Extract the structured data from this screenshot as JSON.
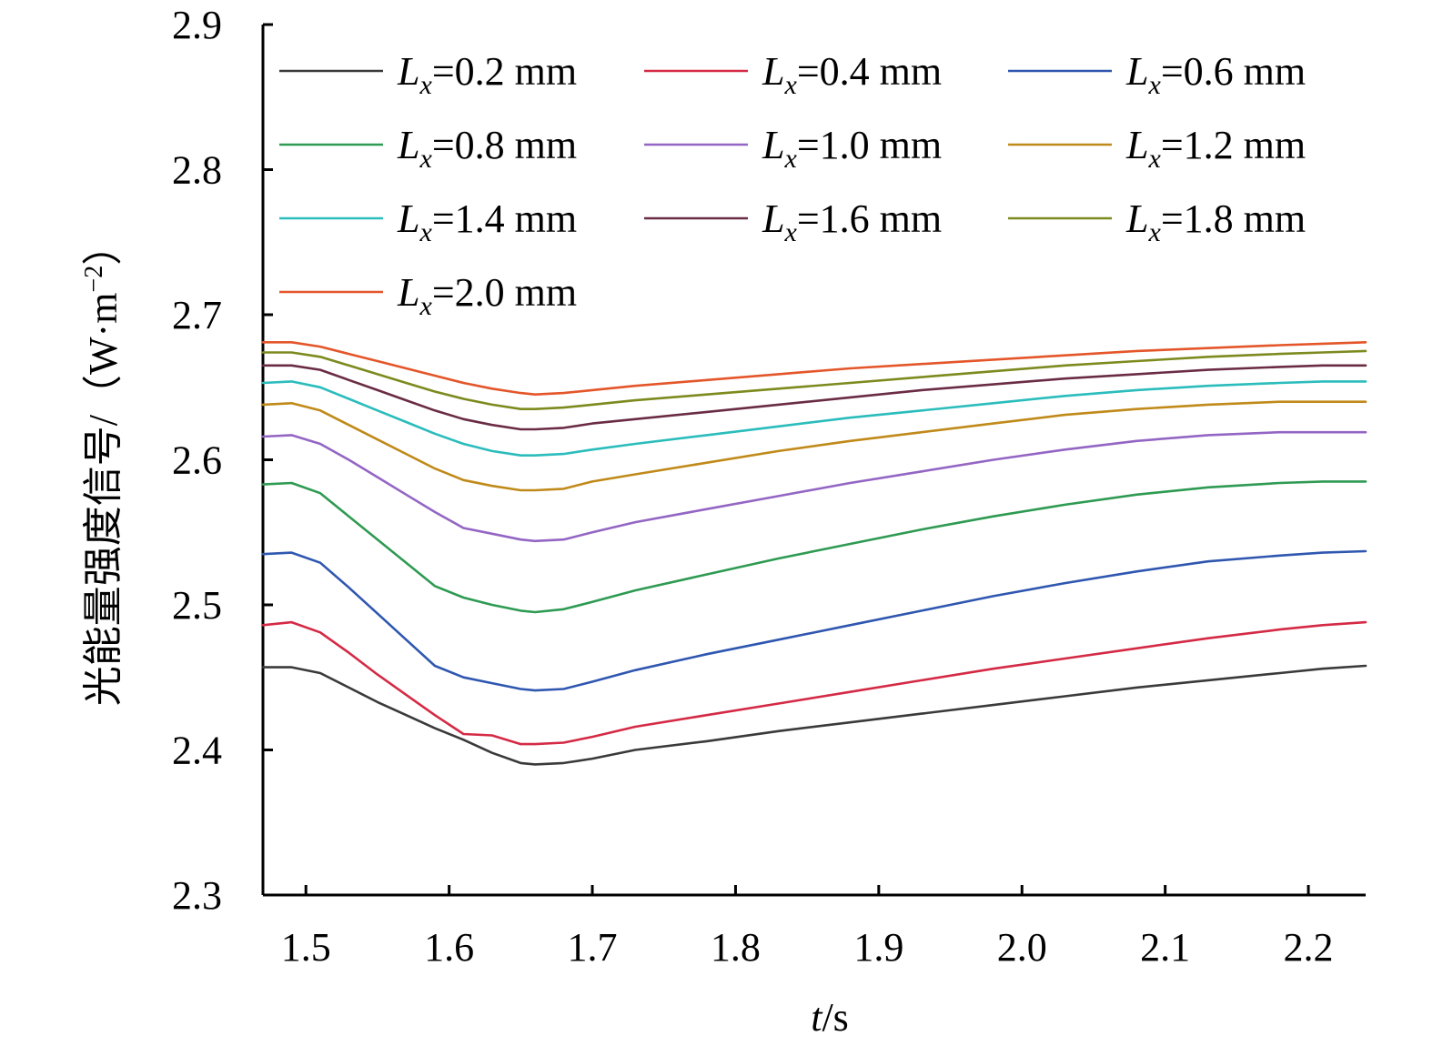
{
  "chart_data": {
    "type": "line",
    "title": "",
    "xlabel": {
      "var": "t",
      "unit": "/s"
    },
    "ylabel": {
      "main": "光能量强度信号/",
      "unit_open": "（W·m",
      "unit_sup": "−2",
      "unit_close": "）"
    },
    "xlim": [
      1.47,
      2.24
    ],
    "ylim": [
      2.3,
      2.9
    ],
    "x_ticks": [
      1.5,
      1.6,
      1.7,
      1.8,
      1.9,
      2.0,
      2.1,
      2.2
    ],
    "x_tick_labels": [
      "1.5",
      "1.6",
      "1.7",
      "1.8",
      "1.9",
      "2.0",
      "2.1",
      "2.2"
    ],
    "y_ticks": [
      2.3,
      2.4,
      2.5,
      2.6,
      2.7,
      2.8,
      2.9
    ],
    "y_tick_labels": [
      "2.3",
      "2.4",
      "2.5",
      "2.6",
      "2.7",
      "2.8",
      "2.9"
    ],
    "grid": false,
    "legend_position": "top-left",
    "x": [
      1.47,
      1.49,
      1.51,
      1.53,
      1.55,
      1.57,
      1.59,
      1.61,
      1.63,
      1.65,
      1.66,
      1.68,
      1.7,
      1.73,
      1.78,
      1.83,
      1.88,
      1.93,
      1.98,
      2.03,
      2.08,
      2.13,
      2.18,
      2.21,
      2.24
    ],
    "series": [
      {
        "name": "Lx=0.2 mm",
        "label_var": "L",
        "label_sub": "x",
        "label_rest": "=0.2 mm",
        "color": "#3a3a3a",
        "values": [
          2.457,
          2.457,
          2.453,
          2.443,
          2.433,
          2.424,
          2.415,
          2.407,
          2.398,
          2.391,
          2.39,
          2.391,
          2.394,
          2.4,
          2.406,
          2.413,
          2.419,
          2.425,
          2.431,
          2.437,
          2.443,
          2.448,
          2.453,
          2.456,
          2.458
        ]
      },
      {
        "name": "Lx=0.4 mm",
        "label_var": "L",
        "label_sub": "x",
        "label_rest": "=0.4 mm",
        "color": "#d42a45",
        "values": [
          2.486,
          2.488,
          2.481,
          2.467,
          2.452,
          2.438,
          2.424,
          2.411,
          2.41,
          2.404,
          2.404,
          2.405,
          2.409,
          2.416,
          2.424,
          2.432,
          2.44,
          2.448,
          2.456,
          2.463,
          2.47,
          2.477,
          2.483,
          2.486,
          2.488
        ]
      },
      {
        "name": "Lx=0.6 mm",
        "label_var": "L",
        "label_sub": "x",
        "label_rest": "=0.6 mm",
        "color": "#2f57b0",
        "values": [
          2.535,
          2.536,
          2.529,
          2.512,
          2.494,
          2.476,
          2.458,
          2.45,
          2.446,
          2.442,
          2.441,
          2.442,
          2.447,
          2.455,
          2.466,
          2.476,
          2.486,
          2.496,
          2.506,
          2.515,
          2.523,
          2.53,
          2.534,
          2.536,
          2.537
        ]
      },
      {
        "name": "Lx=0.8 mm",
        "label_var": "L",
        "label_sub": "x",
        "label_rest": "=0.8 mm",
        "color": "#2e9a52",
        "values": [
          2.583,
          2.584,
          2.577,
          2.561,
          2.545,
          2.529,
          2.513,
          2.505,
          2.5,
          2.496,
          2.495,
          2.497,
          2.502,
          2.51,
          2.521,
          2.532,
          2.542,
          2.552,
          2.561,
          2.569,
          2.576,
          2.581,
          2.584,
          2.585,
          2.585
        ]
      },
      {
        "name": "Lx=1.0 mm",
        "label_var": "L",
        "label_sub": "x",
        "label_rest": "=1.0 mm",
        "color": "#9466c4",
        "values": [
          2.616,
          2.617,
          2.611,
          2.6,
          2.588,
          2.576,
          2.564,
          2.553,
          2.549,
          2.545,
          2.544,
          2.545,
          2.55,
          2.557,
          2.566,
          2.575,
          2.584,
          2.592,
          2.6,
          2.607,
          2.613,
          2.617,
          2.619,
          2.619,
          2.619
        ]
      },
      {
        "name": "Lx=1.2 mm",
        "label_var": "L",
        "label_sub": "x",
        "label_rest": "=1.2 mm",
        "color": "#c08a1a",
        "values": [
          2.638,
          2.639,
          2.634,
          2.624,
          2.614,
          2.604,
          2.594,
          2.586,
          2.582,
          2.579,
          2.579,
          2.58,
          2.585,
          2.59,
          2.598,
          2.606,
          2.613,
          2.619,
          2.625,
          2.631,
          2.635,
          2.638,
          2.64,
          2.64,
          2.64
        ]
      },
      {
        "name": "Lx=1.4 mm",
        "label_var": "L",
        "label_sub": "x",
        "label_rest": "=1.4 mm",
        "color": "#2bbcbc",
        "values": [
          2.653,
          2.654,
          2.65,
          2.642,
          2.634,
          2.626,
          2.618,
          2.611,
          2.606,
          2.603,
          2.603,
          2.604,
          2.607,
          2.611,
          2.617,
          2.623,
          2.629,
          2.634,
          2.639,
          2.644,
          2.648,
          2.651,
          2.653,
          2.654,
          2.654
        ]
      },
      {
        "name": "Lx=1.6 mm",
        "label_var": "L",
        "label_sub": "x",
        "label_rest": "=1.6 mm",
        "color": "#6a2c44",
        "values": [
          2.665,
          2.665,
          2.662,
          2.655,
          2.648,
          2.641,
          2.634,
          2.628,
          2.624,
          2.621,
          2.621,
          2.622,
          2.625,
          2.628,
          2.633,
          2.638,
          2.643,
          2.648,
          2.652,
          2.656,
          2.659,
          2.662,
          2.664,
          2.665,
          2.665
        ]
      },
      {
        "name": "Lx=1.8 mm",
        "label_var": "L",
        "label_sub": "x",
        "label_rest": "=1.8 mm",
        "color": "#7d8a1e",
        "values": [
          2.674,
          2.674,
          2.671,
          2.665,
          2.659,
          2.653,
          2.647,
          2.642,
          2.638,
          2.635,
          2.635,
          2.636,
          2.638,
          2.641,
          2.645,
          2.649,
          2.653,
          2.657,
          2.661,
          2.665,
          2.668,
          2.671,
          2.673,
          2.674,
          2.675
        ]
      },
      {
        "name": "Lx=2.0 mm",
        "label_var": "L",
        "label_sub": "x",
        "label_rest": "=2.0 mm",
        "color": "#e4562a",
        "values": [
          2.681,
          2.681,
          2.678,
          2.673,
          2.668,
          2.663,
          2.658,
          2.653,
          2.649,
          2.646,
          2.645,
          2.646,
          2.648,
          2.651,
          2.655,
          2.659,
          2.663,
          2.666,
          2.669,
          2.672,
          2.675,
          2.677,
          2.679,
          2.68,
          2.681
        ]
      }
    ]
  }
}
